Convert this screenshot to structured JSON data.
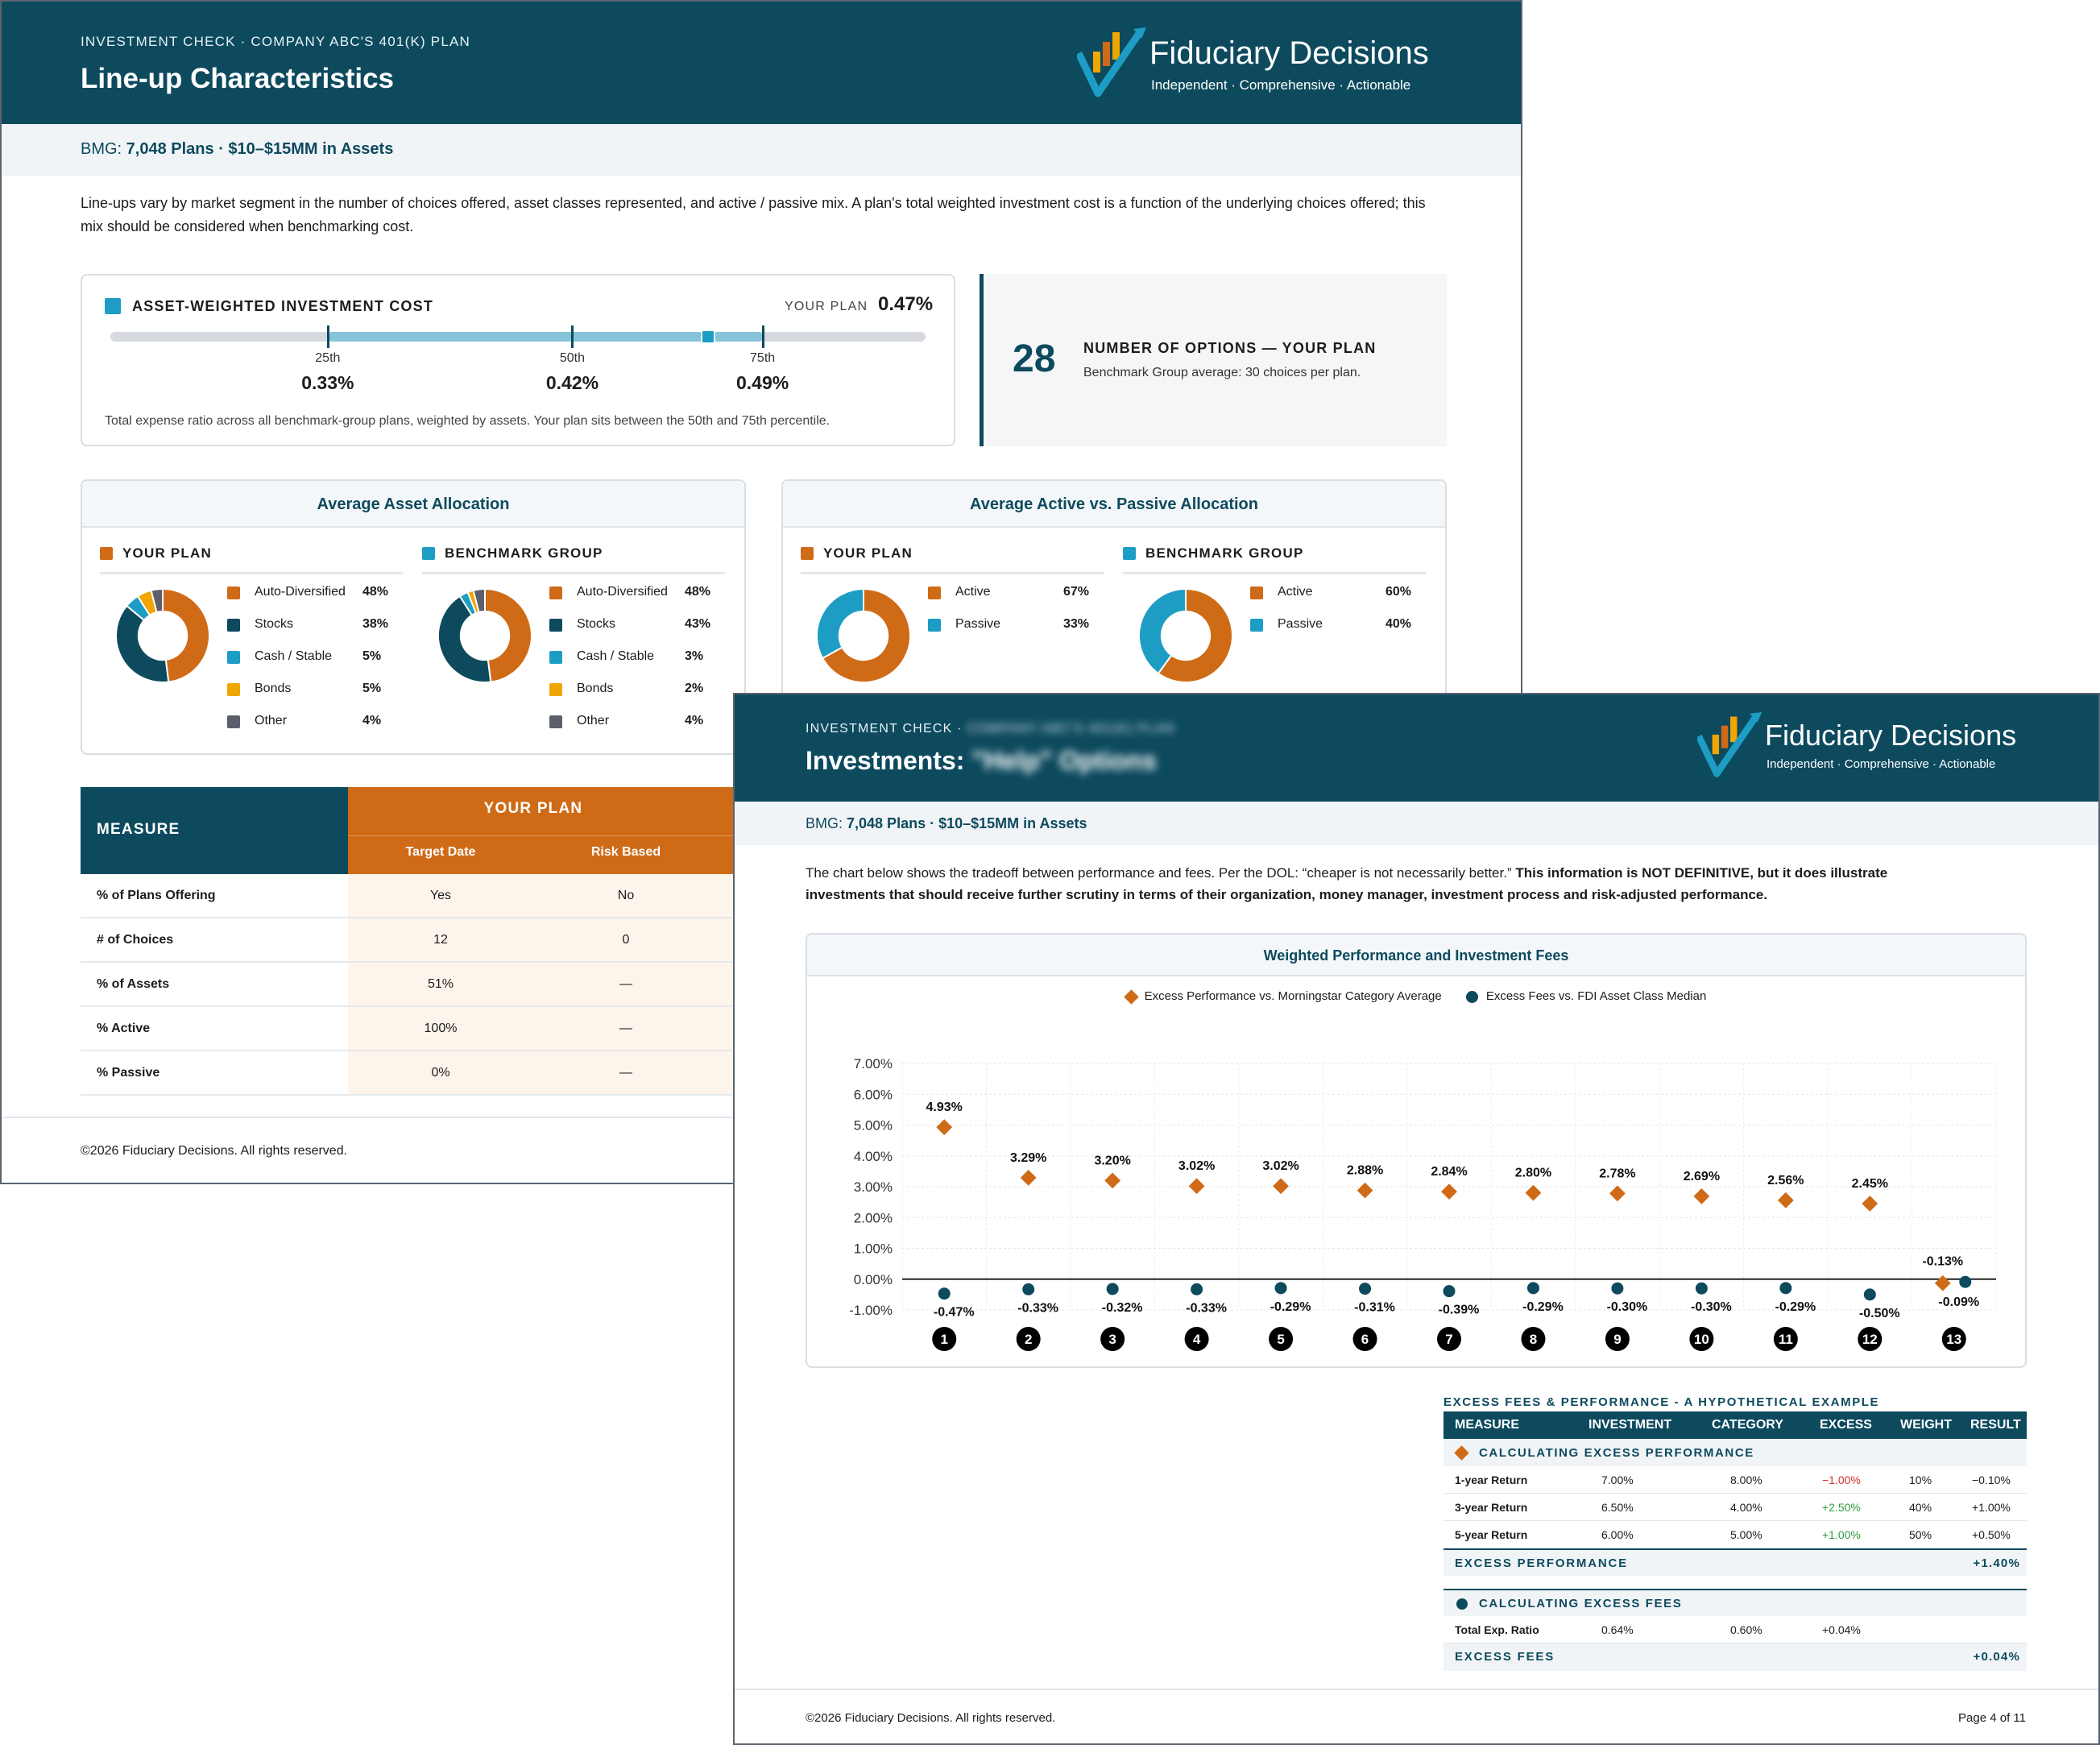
{
  "colors": {
    "navy": "#0d4a5e",
    "orange": "#cf6b17",
    "teal": "#1e9dc4",
    "gold": "#f0a500",
    "gray": "#5b5f6b",
    "stocks": "#0d4a5e"
  },
  "brand": {
    "name": "Fiduciary Decisions",
    "tagline": "Independent · Comprehensive · Actionable",
    "logo_icon": "rising-bars-checkmark-icon"
  },
  "page1": {
    "eyebrow": "INVESTMENT CHECK · COMPANY ABC'S 401(K) PLAN",
    "title": "Line-up Characteristics",
    "bmg_prefix": "BMG: ",
    "bmg_value": "7,048 Plans · $10–$15MM in Assets",
    "intro": "Line-ups vary by market segment in the number of choices offered, asset classes represented, and active / passive mix. A plan's total weighted investment cost is a function of the underlying choices offered; this mix should be considered when benchmarking cost.",
    "cost": {
      "label": "ASSET-WEIGHTED INVESTMENT COST",
      "your_plan_label": "YOUR PLAN",
      "your_plan_value": "0.47%",
      "your_plan_numeric": 0.47,
      "scale_min": 0.25,
      "scale_max": 0.55,
      "percentiles": [
        {
          "label": "25th",
          "value": "0.33%",
          "numeric": 0.33
        },
        {
          "label": "50th",
          "value": "0.42%",
          "numeric": 0.42
        },
        {
          "label": "75th",
          "value": "0.49%",
          "numeric": 0.49
        }
      ],
      "note": "Total expense ratio across all benchmark-group plans, weighted by assets. Your plan sits between the 50th and 75th percentile."
    },
    "options": {
      "number": "28",
      "label": "NUMBER OF OPTIONS — YOUR PLAN",
      "sub": "Benchmark Group average: 30 choices per plan."
    },
    "asset_alloc": {
      "title": "Average Asset Allocation",
      "your_plan": {
        "label": "YOUR PLAN",
        "items": [
          {
            "name": "Auto-Diversified",
            "value": "48%",
            "pct": 48,
            "color": "#cf6b17"
          },
          {
            "name": "Stocks",
            "value": "38%",
            "pct": 38,
            "color": "#0d4a5e"
          },
          {
            "name": "Cash / Stable",
            "value": "5%",
            "pct": 5,
            "color": "#1e9dc4"
          },
          {
            "name": "Bonds",
            "value": "5%",
            "pct": 5,
            "color": "#f0a500"
          },
          {
            "name": "Other",
            "value": "4%",
            "pct": 4,
            "color": "#5b5f6b"
          }
        ]
      },
      "benchmark": {
        "label": "BENCHMARK GROUP",
        "items": [
          {
            "name": "Auto-Diversified",
            "value": "48%",
            "pct": 48,
            "color": "#cf6b17"
          },
          {
            "name": "Stocks",
            "value": "43%",
            "pct": 43,
            "color": "#0d4a5e"
          },
          {
            "name": "Cash / Stable",
            "value": "3%",
            "pct": 3,
            "color": "#1e9dc4"
          },
          {
            "name": "Bonds",
            "value": "2%",
            "pct": 2,
            "color": "#f0a500"
          },
          {
            "name": "Other",
            "value": "4%",
            "pct": 4,
            "color": "#5b5f6b"
          }
        ]
      }
    },
    "active_passive": {
      "title": "Average Active vs. Passive Allocation",
      "your_plan": {
        "label": "YOUR PLAN",
        "items": [
          {
            "name": "Active",
            "value": "67%",
            "pct": 67,
            "color": "#cf6b17"
          },
          {
            "name": "Passive",
            "value": "33%",
            "pct": 33,
            "color": "#1e9dc4"
          }
        ]
      },
      "benchmark": {
        "label": "BENCHMARK GROUP",
        "items": [
          {
            "name": "Active",
            "value": "60%",
            "pct": 60,
            "color": "#cf6b17"
          },
          {
            "name": "Passive",
            "value": "40%",
            "pct": 40,
            "color": "#1e9dc4"
          }
        ]
      }
    },
    "measure_table": {
      "measure_header": "MEASURE",
      "your_plan_header": "YOUR PLAN",
      "cols": [
        "Target Date",
        "Risk Based"
      ],
      "rows": [
        {
          "label": "% of Plans Offering",
          "vals": [
            "Yes",
            "No"
          ]
        },
        {
          "label": "# of Choices",
          "vals": [
            "12",
            "0"
          ]
        },
        {
          "label": "% of Assets",
          "vals": [
            "51%",
            "—"
          ]
        },
        {
          "label": "% Active",
          "vals": [
            "100%",
            "—"
          ]
        },
        {
          "label": "% Passive",
          "vals": [
            "0%",
            "—"
          ]
        }
      ]
    },
    "footer": "©2026 Fiduciary Decisions. All rights reserved."
  },
  "page2": {
    "eyebrow": "INVESTMENT CHECK · ",
    "eyebrow_blurred": "COMPANY ABC'S 401(K) PLAN",
    "title": "Investments: ",
    "title_blurred": "\"Help\" Options",
    "bmg_prefix": "BMG: ",
    "bmg_value": "7,048 Plans · $10–$15MM in Assets",
    "intro_plain": "The chart below shows the tradeoff between performance and fees. Per the DOL: “cheaper is not necessarily better.” ",
    "intro_bold": "This information is NOT DEFINITIVE, but it does illustrate investments that should receive further scrutiny in terms of their organization, money manager, investment process and risk-adjusted performance.",
    "chart_title": "Weighted Performance and Investment Fees",
    "example": {
      "title": "EXCESS FEES & PERFORMANCE - A HYPOTHETICAL EXAMPLE",
      "headers": [
        "MEASURE",
        "INVESTMENT",
        "CATEGORY",
        "EXCESS",
        "WEIGHT",
        "RESULT"
      ],
      "perf_section": "CALCULATING EXCESS PERFORMANCE",
      "perf_rows": [
        {
          "label": "1-year Return",
          "inv": "7.00%",
          "cat": "8.00%",
          "excess": "−1.00%",
          "excess_color": "#d32f2f",
          "weight": "10%",
          "result": "−0.10%"
        },
        {
          "label": "3-year Return",
          "inv": "6.50%",
          "cat": "4.00%",
          "excess": "+2.50%",
          "excess_color": "#2e9a3f",
          "weight": "40%",
          "result": "+1.00%"
        },
        {
          "label": "5-year Return",
          "inv": "6.00%",
          "cat": "5.00%",
          "excess": "+1.00%",
          "excess_color": "#2e9a3f",
          "weight": "50%",
          "result": "+0.50%"
        }
      ],
      "perf_total_label": "EXCESS PERFORMANCE",
      "perf_total": "+1.40%",
      "fees_section": "CALCULATING EXCESS FEES",
      "fee_row": {
        "label": "Total Exp. Ratio",
        "inv": "0.64%",
        "cat": "0.60%",
        "excess": "+0.04%"
      },
      "fees_total_label": "EXCESS FEES",
      "fees_total": "+0.04%"
    },
    "footer": "©2026 Fiduciary Decisions. All rights reserved.",
    "page_num": "Page 4 of 11"
  },
  "chart_data": {
    "type": "scatter",
    "title": "Weighted Performance and Investment Fees",
    "xlabel": "",
    "ylabel": "",
    "categories": [
      "1",
      "2",
      "3",
      "4",
      "5",
      "6",
      "7",
      "8",
      "9",
      "10",
      "11",
      "12",
      "13"
    ],
    "ylim": [
      -1,
      7
    ],
    "yticks": [
      "7.00%",
      "6.00%",
      "5.00%",
      "4.00%",
      "3.00%",
      "2.00%",
      "1.00%",
      "0.00%",
      "-1.00%"
    ],
    "grid": true,
    "legend": "top-center",
    "series": [
      {
        "name": "Excess Performance vs. Morningstar Category Average",
        "marker": "diamond",
        "color": "#cf6b17",
        "values": [
          4.93,
          3.29,
          3.2,
          3.02,
          3.02,
          2.88,
          2.84,
          2.8,
          2.78,
          2.69,
          2.56,
          2.45,
          -0.13
        ],
        "labels": [
          "4.93%",
          "3.29%",
          "3.20%",
          "3.02%",
          "3.02%",
          "2.88%",
          "2.84%",
          "2.80%",
          "2.78%",
          "2.69%",
          "2.56%",
          "2.45%",
          "-0.13%"
        ]
      },
      {
        "name": "Excess Fees vs. FDI Asset Class Median",
        "marker": "circle",
        "color": "#0d4a5e",
        "values": [
          -0.47,
          -0.33,
          -0.32,
          -0.33,
          -0.29,
          -0.31,
          -0.39,
          -0.29,
          -0.3,
          -0.3,
          -0.29,
          -0.5,
          -0.09
        ],
        "labels": [
          "-0.47%",
          "-0.33%",
          "-0.32%",
          "-0.33%",
          "-0.29%",
          "-0.31%",
          "-0.39%",
          "-0.29%",
          "-0.30%",
          "-0.30%",
          "-0.29%",
          "-0.50%",
          "-0.09%"
        ]
      }
    ]
  }
}
